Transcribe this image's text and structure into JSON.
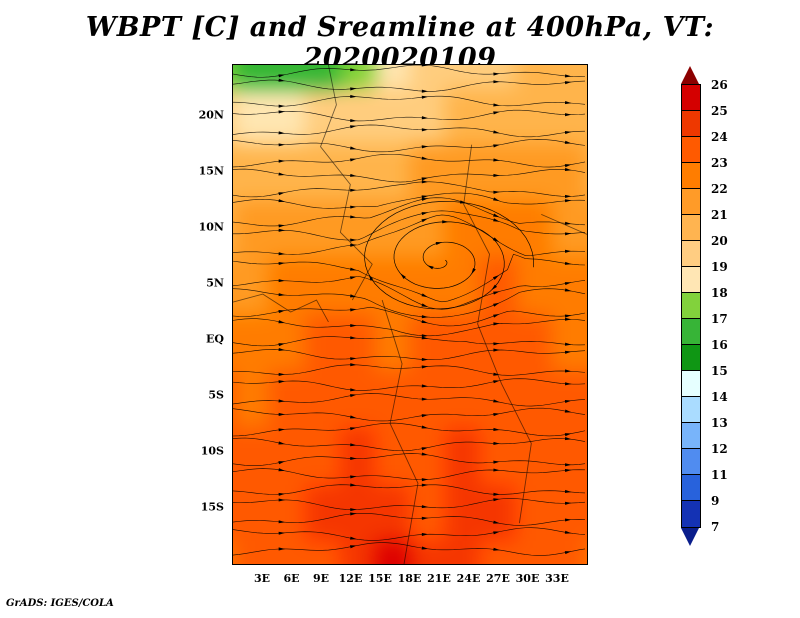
{
  "title": "WBPT [C] and Sreamline at 400hPa, VT: 2020020109",
  "credit": "GrADS: IGES/COLA",
  "axes": {
    "lat_ticks": [
      "20N",
      "15N",
      "10N",
      "5N",
      "EQ",
      "5S",
      "10S",
      "15S"
    ],
    "lon_ticks": [
      "3E",
      "6E",
      "9E",
      "12E",
      "15E",
      "18E",
      "21E",
      "24E",
      "27E",
      "30E",
      "33E"
    ]
  },
  "colorbar": {
    "labels": [
      "26",
      "25",
      "24",
      "23",
      "22",
      "21",
      "20",
      "19",
      "18",
      "17",
      "16",
      "15",
      "14",
      "13",
      "12",
      "11",
      "9",
      "7"
    ],
    "segment_colors": [
      "#d40000",
      "#ee3800",
      "#ff5a00",
      "#ff7d00",
      "#ff9b28",
      "#ffb450",
      "#ffcd82",
      "#ffe6b4",
      "#82d23c",
      "#37b437",
      "#0f9614",
      "#e6ffff",
      "#aadcff",
      "#78b4fa",
      "#508cf0",
      "#2862dc",
      "#1432b4"
    ],
    "arrow_top_color": "#8c0000",
    "arrow_bottom_color": "#0a1e8c"
  },
  "chart_data": {
    "type": "heatmap",
    "title": "WBPT [C] and Sreamline at 400hPa, VT: 2020020109",
    "variable": "WBPT",
    "units": "C",
    "level_hpa": 400,
    "valid_time": "2020020109",
    "overlay": "streamlines",
    "x_tick_labels": [
      "3E",
      "6E",
      "9E",
      "12E",
      "15E",
      "18E",
      "21E",
      "24E",
      "27E",
      "30E",
      "33E"
    ],
    "y_tick_labels": [
      "20N",
      "15N",
      "10N",
      "5N",
      "EQ",
      "5S",
      "10S",
      "15S"
    ],
    "colorbar_levels": [
      7,
      9,
      11,
      12,
      13,
      14,
      15,
      16,
      17,
      18,
      19,
      20,
      21,
      22,
      23,
      24,
      25,
      26
    ],
    "grid_note": "approximate WBPT (C) field, 10 rows north-to-south x 12 cols west-to-east, value = lower bound of 1C band",
    "grid": [
      [
        17,
        16,
        16,
        16,
        17,
        18,
        19,
        19,
        19,
        20,
        20,
        20
      ],
      [
        19,
        18,
        18,
        19,
        19,
        19,
        19,
        20,
        20,
        20,
        20,
        20
      ],
      [
        20,
        20,
        20,
        20,
        20,
        20,
        21,
        21,
        21,
        21,
        21,
        20
      ],
      [
        20,
        21,
        21,
        21,
        21,
        21,
        21,
        22,
        22,
        22,
        21,
        21
      ],
      [
        21,
        21,
        22,
        22,
        22,
        22,
        22,
        22,
        23,
        22,
        22,
        22
      ],
      [
        22,
        22,
        22,
        23,
        23,
        22,
        23,
        23,
        23,
        23,
        22,
        22
      ],
      [
        23,
        22,
        23,
        23,
        23,
        23,
        23,
        23,
        23,
        23,
        23,
        23
      ],
      [
        23,
        23,
        23,
        23,
        24,
        23,
        23,
        24,
        23,
        23,
        23,
        23
      ],
      [
        23,
        23,
        23,
        24,
        24,
        24,
        23,
        24,
        24,
        23,
        23,
        23
      ],
      [
        22,
        23,
        23,
        23,
        24,
        25,
        24,
        24,
        23,
        23,
        23,
        22
      ]
    ],
    "palette": {
      "15": "#0f9614",
      "16": "#37b437",
      "17": "#82d23c",
      "18": "#ffe6b4",
      "19": "#ffcd82",
      "20": "#ffb450",
      "21": "#ff9b28",
      "22": "#ff7d00",
      "23": "#ff5a00",
      "24": "#ee3800",
      "25": "#d40000"
    },
    "streamline_color": "#000000",
    "vortex_center_approx": {
      "lon_e": 21,
      "lat_n": 7
    }
  }
}
